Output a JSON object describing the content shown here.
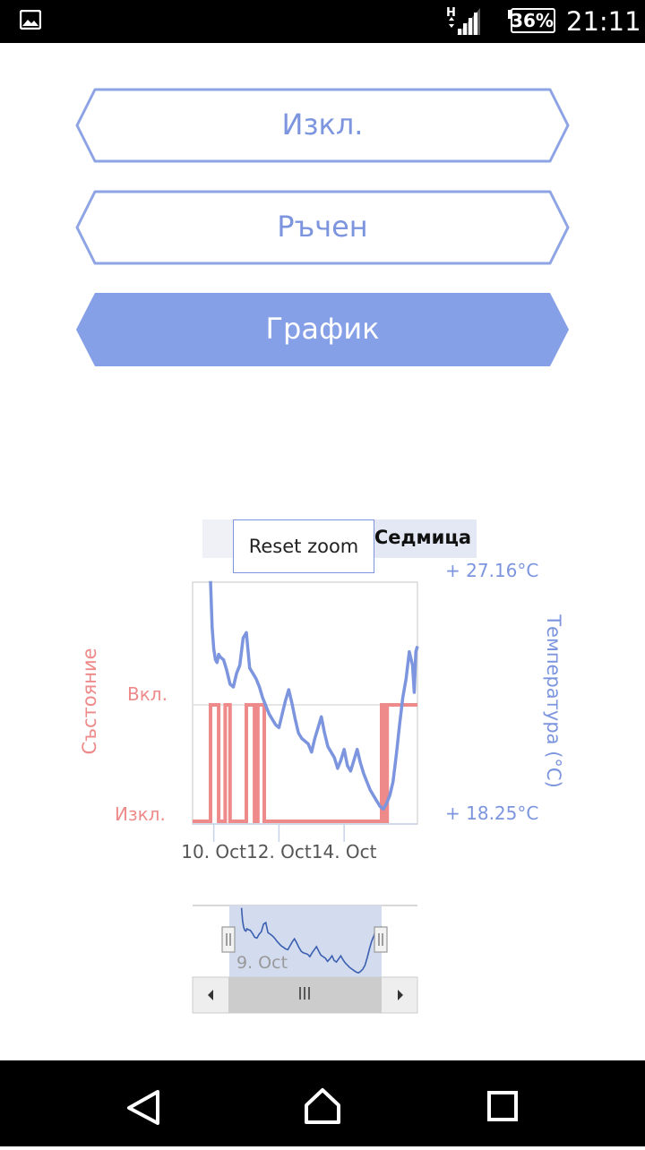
{
  "status_bar": {
    "network_label": "H",
    "battery": "36%",
    "time": "21:11"
  },
  "modes": [
    {
      "label": "Изкл.",
      "selected": false
    },
    {
      "label": "Ръчен",
      "selected": false
    },
    {
      "label": "График",
      "selected": true
    }
  ],
  "range_selector": {
    "selected_label": "Седмица",
    "reset_zoom_label": "Reset zoom"
  },
  "colors": {
    "accent": "#7c95de",
    "accent_fill": "#86a0e8",
    "state_series": "#ee8a8a",
    "navigator_fill": "#d3dcef",
    "navigator_line": "#3b5fb0"
  },
  "chart_data": {
    "type": "line",
    "left_axis": {
      "title": "Състояние",
      "ticks": [
        "Изкл.",
        "Вкл."
      ]
    },
    "right_axis": {
      "title": "Температура (°C)",
      "min_label": "+ 18.25°C",
      "max_label": "+ 27.16°C",
      "ylim": [
        18.25,
        27.16
      ]
    },
    "x_ticks": [
      "10. Oct",
      "12. Oct",
      "14. Oct"
    ],
    "x_tick_days": [
      10,
      12,
      14
    ],
    "x_range": [
      9.35,
      16.25
    ],
    "series": [
      {
        "name": "Температура (°C)",
        "x": [
          9.9,
          9.95,
          10.0,
          10.05,
          10.1,
          10.15,
          10.2,
          10.3,
          10.4,
          10.5,
          10.6,
          10.7,
          10.8,
          10.9,
          11.0,
          11.1,
          11.2,
          11.3,
          11.4,
          11.5,
          11.6,
          11.7,
          11.8,
          11.9,
          12.0,
          12.1,
          12.2,
          12.3,
          12.4,
          12.5,
          12.6,
          12.7,
          12.8,
          12.9,
          13.0,
          13.1,
          13.2,
          13.3,
          13.4,
          13.5,
          13.6,
          13.7,
          13.8,
          13.9,
          14.0,
          14.1,
          14.2,
          14.3,
          14.4,
          14.5,
          14.6,
          14.7,
          14.8,
          14.9,
          15.0,
          15.1,
          15.2,
          15.3,
          15.4,
          15.5,
          15.6,
          15.7,
          15.8,
          15.9,
          16.0,
          16.1,
          16.15,
          16.2,
          16.25
        ],
        "values": [
          27.2,
          25.5,
          24.7,
          24.3,
          24.2,
          24.5,
          24.4,
          24.3,
          23.9,
          23.4,
          23.3,
          23.8,
          24.1,
          25.1,
          25.3,
          24.0,
          23.8,
          23.6,
          23.3,
          22.9,
          22.6,
          22.3,
          22.1,
          21.9,
          21.8,
          22.3,
          22.8,
          23.2,
          22.7,
          22.1,
          21.6,
          21.4,
          21.3,
          21.2,
          20.9,
          21.4,
          21.8,
          22.2,
          21.6,
          21.1,
          20.9,
          20.7,
          20.3,
          20.6,
          21.0,
          20.4,
          20.2,
          20.6,
          21.0,
          20.5,
          20.1,
          19.8,
          19.5,
          19.3,
          19.1,
          18.9,
          18.8,
          19.0,
          19.3,
          19.8,
          20.8,
          21.9,
          22.9,
          23.6,
          24.6,
          24.1,
          23.1,
          24.6,
          24.8
        ]
      },
      {
        "name": "Състояние",
        "x": [
          9.35,
          9.9,
          9.9,
          10.15,
          10.15,
          10.35,
          10.35,
          10.5,
          10.5,
          11.0,
          11.0,
          11.25,
          11.25,
          11.35,
          11.35,
          11.55,
          11.55,
          15.15,
          15.15,
          15.25,
          15.25,
          15.32,
          15.32,
          16.25
        ],
        "values": [
          0,
          0,
          1,
          1,
          0,
          0,
          1,
          1,
          0,
          0,
          1,
          1,
          0,
          0,
          1,
          1,
          0,
          0,
          1,
          1,
          0,
          0,
          1,
          1
        ]
      }
    ],
    "navigator": {
      "x_tick": "9. Oct",
      "selected_range": [
        9.35,
        16.25
      ]
    }
  }
}
